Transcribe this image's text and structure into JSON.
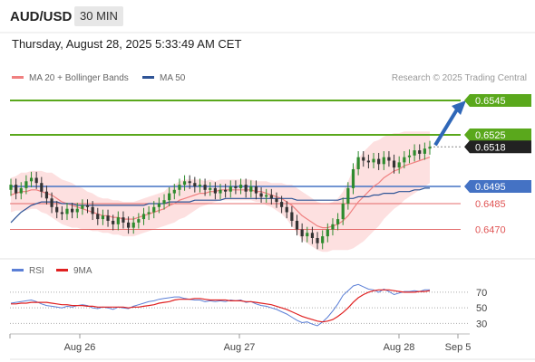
{
  "header": {
    "pair": "AUD/USD",
    "timeframe": "30 MIN",
    "datetime": "Thursday, August 28, 2025 5:33:49 AM CET"
  },
  "legend": {
    "items": [
      {
        "label": "MA 20 + Bollinger Bands",
        "color": "#f08080"
      },
      {
        "label": "MA 50",
        "color": "#2f5496"
      }
    ],
    "credit": "Research © 2025 Trading Central"
  },
  "colors": {
    "up": "#2e8b2e",
    "down": "#333333",
    "support": "#4472c4",
    "resistance": "#5aa81c",
    "pivot_red": "#e05555",
    "band": "#fcd5d5",
    "arrow": "#2f67b8"
  },
  "chart_data": [
    {
      "type": "candlestick",
      "title": "",
      "x_ticks": [
        "Aug 26",
        "Aug 27",
        "Aug 28",
        "Sep 5"
      ],
      "ylim": [
        0.6455,
        0.6555
      ],
      "levels": [
        {
          "label": "0.6545",
          "value": 0.6545,
          "kind": "resistance"
        },
        {
          "label": "0.6525",
          "value": 0.6525,
          "kind": "resistance"
        },
        {
          "label": "0.6518",
          "value": 0.6518,
          "kind": "last_price"
        },
        {
          "label": "0.6495",
          "value": 0.6495,
          "kind": "support"
        },
        {
          "label": "0.6485",
          "value": 0.6485,
          "kind": "support"
        },
        {
          "label": "0.6470",
          "value": 0.647,
          "kind": "support"
        }
      ],
      "close": [
        0.6496,
        0.6491,
        0.6494,
        0.6498,
        0.65,
        0.6497,
        0.6492,
        0.6488,
        0.6483,
        0.648,
        0.6479,
        0.6482,
        0.648,
        0.6482,
        0.6484,
        0.6483,
        0.6479,
        0.6476,
        0.6478,
        0.6475,
        0.6473,
        0.6477,
        0.6474,
        0.6471,
        0.6474,
        0.6476,
        0.6479,
        0.648,
        0.6483,
        0.6485,
        0.6487,
        0.6491,
        0.6493,
        0.6496,
        0.6498,
        0.6497,
        0.6495,
        0.6496,
        0.6493,
        0.6494,
        0.6491,
        0.6493,
        0.6492,
        0.6495,
        0.6494,
        0.6496,
        0.6492,
        0.6495,
        0.6491,
        0.6489,
        0.649,
        0.6488,
        0.6486,
        0.6483,
        0.648,
        0.6475,
        0.647,
        0.6466,
        0.6468,
        0.6465,
        0.6462,
        0.6466,
        0.647,
        0.6473,
        0.6476,
        0.6485,
        0.6494,
        0.6505,
        0.6512,
        0.651,
        0.6509,
        0.6511,
        0.6508,
        0.6512,
        0.651,
        0.6506,
        0.6509,
        0.6512,
        0.6513,
        0.6516,
        0.6514,
        0.6517,
        0.6518
      ],
      "ma20": [
        0.649,
        0.6491,
        0.6492,
        0.6492,
        0.6493,
        0.6493,
        0.6492,
        0.6491,
        0.649,
        0.6488,
        0.6486,
        0.6485,
        0.6484,
        0.6483,
        0.6482,
        0.6481,
        0.648,
        0.6479,
        0.6478,
        0.6478,
        0.6477,
        0.6477,
        0.6476,
        0.6476,
        0.6476,
        0.6477,
        0.6478,
        0.6479,
        0.648,
        0.6481,
        0.6482,
        0.6484,
        0.6485,
        0.6487,
        0.6488,
        0.6489,
        0.649,
        0.6491,
        0.6491,
        0.6492,
        0.6492,
        0.6493,
        0.6493,
        0.6493,
        0.6493,
        0.6493,
        0.6493,
        0.6493,
        0.6492,
        0.6492,
        0.6491,
        0.649,
        0.6489,
        0.6488,
        0.6486,
        0.6484,
        0.6481,
        0.6478,
        0.6476,
        0.6474,
        0.6472,
        0.6471,
        0.6471,
        0.6472,
        0.6473,
        0.6475,
        0.6478,
        0.6482,
        0.6486,
        0.6489,
        0.6492,
        0.6495,
        0.6497,
        0.65,
        0.6502,
        0.6504,
        0.6505,
        0.6507,
        0.6508,
        0.6509,
        0.651,
        0.6511,
        0.6512
      ],
      "ma50": [
        0.6474,
        0.6477,
        0.648,
        0.6482,
        0.6484,
        0.6485,
        0.6486,
        0.6486,
        0.6486,
        0.6486,
        0.6485,
        0.6485,
        0.6485,
        0.6484,
        0.6484,
        0.6484,
        0.6484,
        0.6484,
        0.6484,
        0.6484,
        0.6484,
        0.6484,
        0.6484,
        0.6484,
        0.6484,
        0.6484,
        0.6484,
        0.6485,
        0.6485,
        0.6485,
        0.6485,
        0.6486,
        0.6486,
        0.6486,
        0.6486,
        0.6486,
        0.6487,
        0.6487,
        0.6487,
        0.6487,
        0.6487,
        0.6487,
        0.6488,
        0.6488,
        0.6488,
        0.6488,
        0.6488,
        0.6488,
        0.6488,
        0.6488,
        0.6488,
        0.6488,
        0.6488,
        0.6488,
        0.6488,
        0.6488,
        0.6487,
        0.6487,
        0.6487,
        0.6487,
        0.6487,
        0.6487,
        0.6487,
        0.6487,
        0.6487,
        0.6488,
        0.6488,
        0.6488,
        0.6489,
        0.6489,
        0.6489,
        0.649,
        0.649,
        0.6491,
        0.6491,
        0.6491,
        0.6492,
        0.6492,
        0.6492,
        0.6493,
        0.6493,
        0.6494,
        0.6494
      ],
      "bb_halfwidth": [
        0.001,
        0.001,
        0.0011,
        0.0011,
        0.0011,
        0.0011,
        0.0012,
        0.0012,
        0.0013,
        0.0013,
        0.0013,
        0.0013,
        0.0013,
        0.0012,
        0.0012,
        0.0011,
        0.0011,
        0.001,
        0.001,
        0.001,
        0.001,
        0.001,
        0.001,
        0.001,
        0.001,
        0.001,
        0.001,
        0.001,
        0.001,
        0.001,
        0.001,
        0.0011,
        0.0011,
        0.0011,
        0.0011,
        0.001,
        0.0009,
        0.0008,
        0.0007,
        0.0007,
        0.0006,
        0.0006,
        0.0006,
        0.0006,
        0.0006,
        0.0006,
        0.0006,
        0.0006,
        0.0006,
        0.0006,
        0.0007,
        0.0007,
        0.0008,
        0.0009,
        0.001,
        0.0012,
        0.0013,
        0.0014,
        0.0014,
        0.0014,
        0.0014,
        0.0014,
        0.0014,
        0.0014,
        0.0015,
        0.0017,
        0.002,
        0.0023,
        0.0025,
        0.0026,
        0.0026,
        0.0026,
        0.0025,
        0.0024,
        0.0023,
        0.0022,
        0.0021,
        0.002,
        0.0019,
        0.0018,
        0.0017,
        0.0016,
        0.0015
      ]
    },
    {
      "type": "line",
      "title": "",
      "legend": [
        "RSI",
        "9MA"
      ],
      "y_ticks": [
        "70",
        "50",
        "30"
      ],
      "ylim": [
        20,
        85
      ],
      "series": [
        {
          "name": "RSI",
          "values": [
            56,
            57,
            58,
            59,
            60,
            58,
            55,
            53,
            52,
            51,
            50,
            52,
            51,
            53,
            54,
            53,
            50,
            49,
            51,
            50,
            48,
            51,
            50,
            49,
            52,
            54,
            56,
            58,
            59,
            61,
            62,
            63,
            64,
            64,
            62,
            61,
            60,
            60,
            58,
            59,
            58,
            59,
            58,
            60,
            59,
            60,
            57,
            58,
            55,
            53,
            52,
            50,
            48,
            45,
            42,
            38,
            34,
            31,
            32,
            29,
            27,
            32,
            38,
            46,
            55,
            66,
            72,
            78,
            80,
            77,
            74,
            73,
            70,
            74,
            71,
            67,
            69,
            71,
            71,
            72,
            71,
            73,
            73
          ]
        },
        {
          "name": "9MA",
          "values": [
            55,
            55,
            56,
            56,
            57,
            57,
            57,
            57,
            56,
            55,
            54,
            54,
            53,
            53,
            53,
            52,
            52,
            51,
            51,
            51,
            51,
            51,
            51,
            50,
            51,
            51,
            52,
            53,
            54,
            56,
            57,
            58,
            60,
            61,
            61,
            61,
            62,
            62,
            61,
            60,
            60,
            60,
            60,
            59,
            59,
            59,
            58,
            58,
            57,
            56,
            55,
            54,
            52,
            50,
            48,
            45,
            42,
            39,
            37,
            35,
            33,
            32,
            33,
            35,
            39,
            44,
            50,
            57,
            63,
            67,
            70,
            72,
            73,
            73,
            73,
            72,
            71,
            70,
            70,
            70,
            71,
            71,
            72
          ]
        }
      ]
    }
  ]
}
